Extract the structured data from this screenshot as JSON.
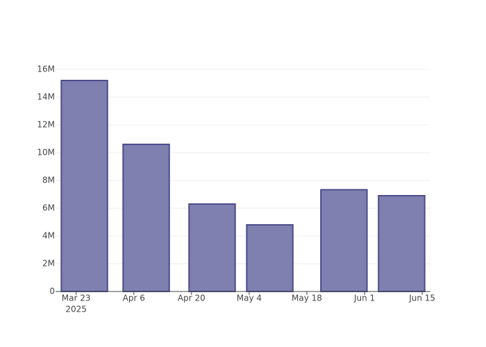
{
  "chart_data": {
    "type": "bar",
    "x": [
      "2025-03-25",
      "2025-04-09",
      "2025-04-25",
      "2025-05-09",
      "2025-05-27",
      "2025-06-10"
    ],
    "values": [
      15200000,
      10600000,
      6300000,
      4800000,
      7330000,
      6900000
    ],
    "color": "#7f7fb0",
    "line_color": "#4b4b8a",
    "xlim": [
      "2025-03-18",
      "2025-06-17"
    ],
    "xticks": [
      {
        "value": "2025-03-23",
        "label": "Mar 23"
      },
      {
        "value": "2025-04-06",
        "label": "Apr 6"
      },
      {
        "value": "2025-04-20",
        "label": "Apr 20"
      },
      {
        "value": "2025-05-04",
        "label": "May 4"
      },
      {
        "value": "2025-05-18",
        "label": "May 18"
      },
      {
        "value": "2025-06-01",
        "label": "Jun 1"
      },
      {
        "value": "2025-06-15",
        "label": "Jun 15"
      }
    ],
    "x_year": "2025",
    "ylim": [
      0,
      16000000
    ],
    "yticks": [
      0,
      {
        "value": 2000000,
        "label": "2M"
      },
      {
        "value": 4000000,
        "label": "4M"
      },
      {
        "value": 6000000,
        "label": "6M"
      },
      {
        "value": 8000000,
        "label": "8M"
      },
      {
        "value": 10000000,
        "label": "10M"
      },
      {
        "value": 12000000,
        "label": "12M"
      },
      {
        "value": 14000000,
        "label": "14M"
      },
      {
        "value": 16000000,
        "label": "16M"
      }
    ],
    "grid": true
  }
}
